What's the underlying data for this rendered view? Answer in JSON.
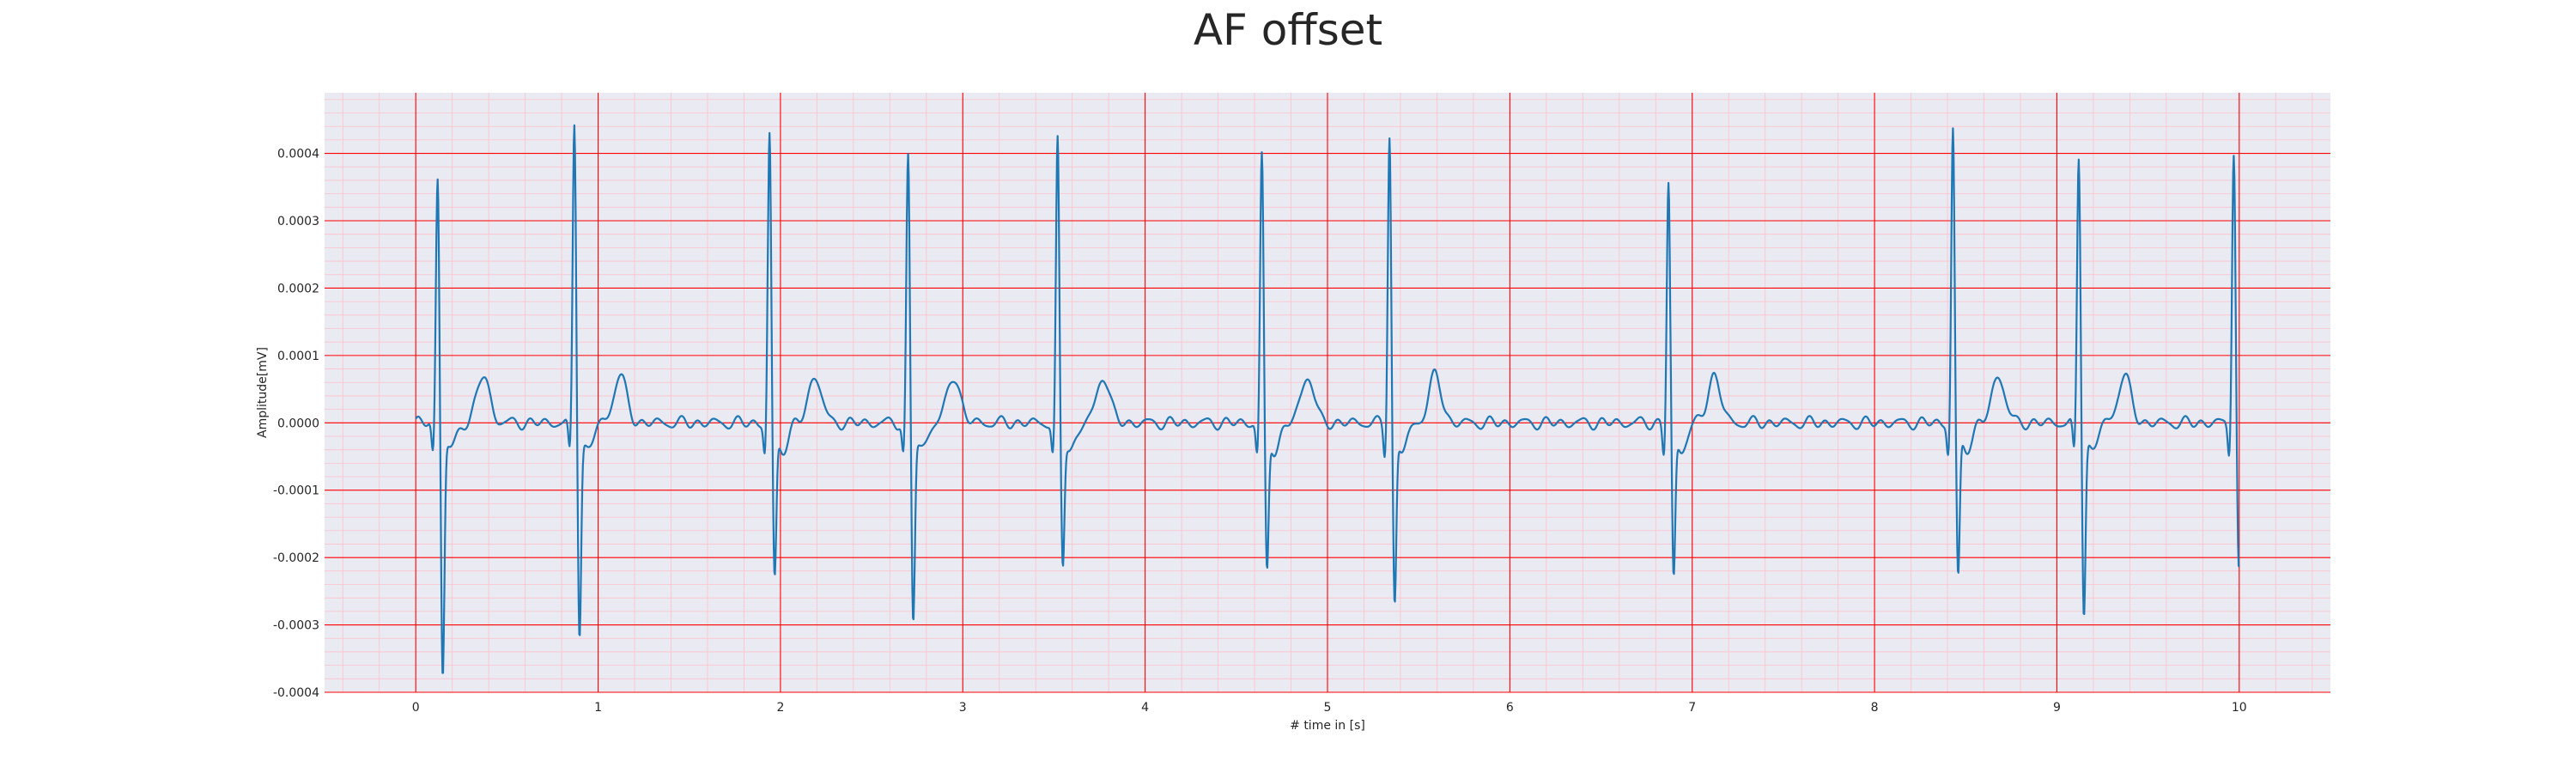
{
  "chart_data": {
    "type": "line",
    "title": "AF offset",
    "xlabel": "# time in [s]",
    "ylabel": "Amplitude[mV]",
    "xlim": [
      -0.5,
      10.5
    ],
    "ylim": [
      -0.0004,
      0.00049
    ],
    "x_ticks": [
      0,
      1,
      2,
      3,
      4,
      5,
      6,
      7,
      8,
      9,
      10
    ],
    "x_tick_labels": [
      "0",
      "1",
      "2",
      "3",
      "4",
      "5",
      "6",
      "7",
      "8",
      "9",
      "10"
    ],
    "y_ticks": [
      -0.0004,
      -0.0003,
      -0.0002,
      -0.0001,
      0.0,
      0.0001,
      0.0002,
      0.0003,
      0.0004
    ],
    "y_tick_labels": [
      "-0.0004",
      "-0.0003",
      "-0.0002",
      "-0.0001",
      "0.0000",
      "0.0001",
      "0.0002",
      "0.0003",
      "0.0004"
    ],
    "grid": true,
    "minor_grid": true,
    "colors": {
      "background": "#eaeaf2",
      "major_grid": "#ff0000",
      "minor_grid": "#ffc0cb",
      "line": "#1f77b4"
    },
    "series": [
      {
        "sample_rate_hz": 100,
        "x_start": 0.0,
        "x_end": 10.0,
        "beats": [
          {
            "t": 0.12,
            "r": 0.00037,
            "s": -0.00036
          },
          {
            "t": 0.87,
            "r": 0.00045,
            "s": -0.0003
          },
          {
            "t": 1.94,
            "r": 0.00043,
            "s": -0.00022
          },
          {
            "t": 2.7,
            "r": 0.0004,
            "s": -0.00028
          },
          {
            "t": 3.52,
            "r": 0.00042,
            "s": -0.0002
          },
          {
            "t": 4.64,
            "r": 0.0004,
            "s": -0.00021
          },
          {
            "t": 5.34,
            "r": 0.00043,
            "s": -0.00026
          },
          {
            "t": 6.87,
            "r": 0.00036,
            "s": -0.00022
          },
          {
            "t": 8.43,
            "r": 0.00044,
            "s": -0.00022
          },
          {
            "t": 9.12,
            "r": 0.0004,
            "s": -0.00027
          },
          {
            "t": 9.97,
            "r": 0.00041,
            "s": -0.00021
          }
        ]
      }
    ]
  }
}
